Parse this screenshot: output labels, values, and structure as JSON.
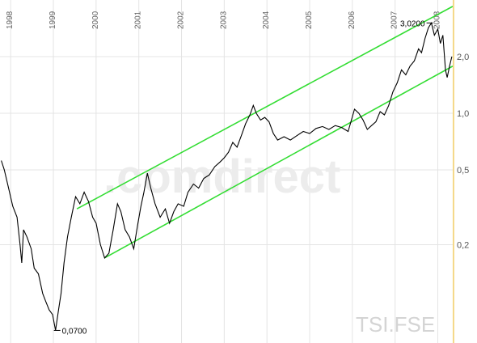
{
  "chart_data": {
    "type": "line",
    "symbol": "TSI.FSE",
    "watermark": ".comdirect",
    "y_scale": "log",
    "ylim": [
      0.06,
      4.0
    ],
    "xlim": [
      1997.75,
      2008.35
    ],
    "year_labels": [
      "1998",
      "1999",
      "2000",
      "2001",
      "2002",
      "2003",
      "2004",
      "2005",
      "2006",
      "2007",
      "2008"
    ],
    "y_ticks": [
      {
        "value": 2.0,
        "label": "2,0"
      },
      {
        "value": 1.0,
        "label": "1,0"
      },
      {
        "value": 0.5,
        "label": "0,5"
      },
      {
        "value": 0.2,
        "label": "0,2"
      }
    ],
    "annotations": {
      "high": {
        "x": 2007.85,
        "y": 3.02,
        "label": "3,0200"
      },
      "low": {
        "x": 1999.05,
        "y": 0.07,
        "label": "0,0700"
      }
    },
    "series": [
      {
        "values": [
          [
            1997.78,
            0.56
          ],
          [
            1997.85,
            0.5
          ],
          [
            1997.95,
            0.4
          ],
          [
            1998.05,
            0.32
          ],
          [
            1998.15,
            0.28
          ],
          [
            1998.22,
            0.2
          ],
          [
            1998.26,
            0.16
          ],
          [
            1998.3,
            0.24
          ],
          [
            1998.38,
            0.22
          ],
          [
            1998.48,
            0.19
          ],
          [
            1998.55,
            0.15
          ],
          [
            1998.65,
            0.14
          ],
          [
            1998.75,
            0.11
          ],
          [
            1998.82,
            0.1
          ],
          [
            1998.9,
            0.09
          ],
          [
            1998.98,
            0.085
          ],
          [
            1999.05,
            0.07
          ],
          [
            1999.12,
            0.09
          ],
          [
            1999.18,
            0.11
          ],
          [
            1999.25,
            0.16
          ],
          [
            1999.33,
            0.22
          ],
          [
            1999.42,
            0.28
          ],
          [
            1999.52,
            0.36
          ],
          [
            1999.62,
            0.33
          ],
          [
            1999.72,
            0.38
          ],
          [
            1999.82,
            0.34
          ],
          [
            1999.92,
            0.28
          ],
          [
            2000.0,
            0.26
          ],
          [
            2000.1,
            0.2
          ],
          [
            2000.2,
            0.17
          ],
          [
            2000.3,
            0.18
          ],
          [
            2000.4,
            0.24
          ],
          [
            2000.5,
            0.33
          ],
          [
            2000.58,
            0.3
          ],
          [
            2000.68,
            0.24
          ],
          [
            2000.78,
            0.22
          ],
          [
            2000.88,
            0.19
          ],
          [
            2000.98,
            0.26
          ],
          [
            2001.05,
            0.32
          ],
          [
            2001.12,
            0.38
          ],
          [
            2001.2,
            0.48
          ],
          [
            2001.28,
            0.4
          ],
          [
            2001.38,
            0.33
          ],
          [
            2001.5,
            0.28
          ],
          [
            2001.62,
            0.31
          ],
          [
            2001.72,
            0.26
          ],
          [
            2001.82,
            0.3
          ],
          [
            2001.92,
            0.33
          ],
          [
            2002.05,
            0.32
          ],
          [
            2002.15,
            0.38
          ],
          [
            2002.28,
            0.42
          ],
          [
            2002.4,
            0.4
          ],
          [
            2002.52,
            0.45
          ],
          [
            2002.65,
            0.47
          ],
          [
            2002.78,
            0.52
          ],
          [
            2002.9,
            0.55
          ],
          [
            2003.0,
            0.58
          ],
          [
            2003.1,
            0.62
          ],
          [
            2003.2,
            0.7
          ],
          [
            2003.3,
            0.66
          ],
          [
            2003.4,
            0.76
          ],
          [
            2003.5,
            0.88
          ],
          [
            2003.6,
            0.98
          ],
          [
            2003.68,
            1.1
          ],
          [
            2003.75,
            1.0
          ],
          [
            2003.85,
            0.92
          ],
          [
            2003.95,
            0.95
          ],
          [
            2004.05,
            0.9
          ],
          [
            2004.15,
            0.78
          ],
          [
            2004.25,
            0.72
          ],
          [
            2004.4,
            0.75
          ],
          [
            2004.55,
            0.72
          ],
          [
            2004.7,
            0.76
          ],
          [
            2004.85,
            0.8
          ],
          [
            2005.0,
            0.78
          ],
          [
            2005.15,
            0.83
          ],
          [
            2005.3,
            0.85
          ],
          [
            2005.45,
            0.82
          ],
          [
            2005.6,
            0.86
          ],
          [
            2005.75,
            0.84
          ],
          [
            2005.9,
            0.8
          ],
          [
            2006.05,
            1.05
          ],
          [
            2006.15,
            1.0
          ],
          [
            2006.25,
            0.92
          ],
          [
            2006.35,
            0.82
          ],
          [
            2006.45,
            0.86
          ],
          [
            2006.55,
            0.9
          ],
          [
            2006.65,
            1.02
          ],
          [
            2006.75,
            0.98
          ],
          [
            2006.85,
            1.1
          ],
          [
            2006.95,
            1.3
          ],
          [
            2007.05,
            1.45
          ],
          [
            2007.15,
            1.7
          ],
          [
            2007.25,
            1.6
          ],
          [
            2007.35,
            1.78
          ],
          [
            2007.45,
            1.9
          ],
          [
            2007.55,
            2.2
          ],
          [
            2007.62,
            2.1
          ],
          [
            2007.7,
            2.5
          ],
          [
            2007.78,
            2.85
          ],
          [
            2007.85,
            3.02
          ],
          [
            2007.92,
            2.6
          ],
          [
            2008.0,
            2.8
          ],
          [
            2008.06,
            2.35
          ],
          [
            2008.12,
            2.6
          ],
          [
            2008.18,
            1.7
          ],
          [
            2008.22,
            1.55
          ],
          [
            2008.28,
            1.8
          ],
          [
            2008.33,
            2.0
          ]
        ]
      }
    ],
    "channel_lines": [
      {
        "start": [
          1999.55,
          0.31
        ],
        "end": [
          2008.35,
          3.7
        ]
      },
      {
        "start": [
          2000.2,
          0.17
        ],
        "end": [
          2008.35,
          1.78
        ]
      }
    ],
    "colors": {
      "price_line": "#000000",
      "channel": "#33dd33",
      "grid": "#e4e4e4",
      "current_marker": "#f5d888"
    }
  }
}
